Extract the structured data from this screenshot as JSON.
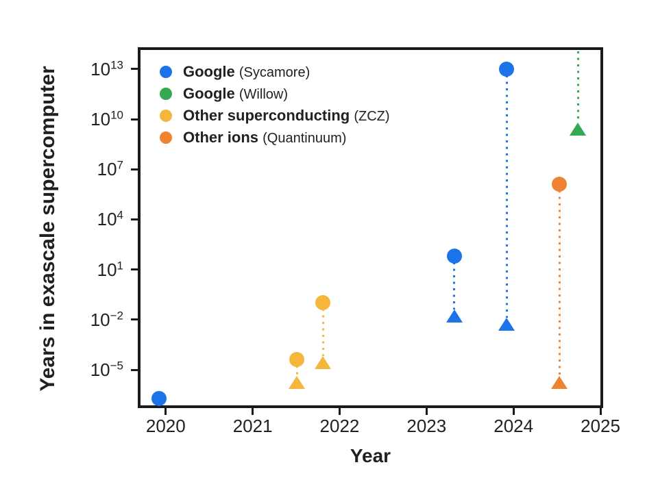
{
  "figure": {
    "background": "#ffffff",
    "axis_color": "#1a1a1a",
    "text_color": "#202124"
  },
  "chart_data": {
    "type": "scatter",
    "title": "",
    "xlabel": "Year",
    "ylabel": "Years in exascale supercomputer",
    "x_ticks": [
      2020,
      2021,
      2022,
      2023,
      2024,
      2025
    ],
    "y_ticks_log10": [
      13,
      10,
      7,
      4,
      1,
      -2,
      -5
    ],
    "y_tick_base": "10",
    "x_range": [
      2019.71,
      2025.0
    ],
    "y_log10_range": [
      -7.13,
      14.14
    ],
    "y_scale": "log",
    "grid": false,
    "legend_position": "upper-left-inside",
    "marker_shapes": [
      "circle",
      "triangle"
    ],
    "connector_style": "dotted-vertical",
    "series": [
      {
        "name": "Google",
        "detail": "(Sycamore)",
        "color": "#1A73E8",
        "points": [
          {
            "year": 2019.92,
            "circle_log10": -6.7,
            "circle_value": "~2e-7",
            "triangle_log10": null,
            "triangle_offscale": "below"
          },
          {
            "year": 2023.32,
            "circle_log10": 1.8,
            "circle_value": "~6e1",
            "triangle_log10": -1.85,
            "triangle_value": "~1.4e-2"
          },
          {
            "year": 2023.92,
            "circle_log10": 13.0,
            "circle_value": "~1e13",
            "triangle_log10": -2.35,
            "triangle_value": "~4.5e-3"
          }
        ]
      },
      {
        "name": "Google",
        "detail": "(Willow)",
        "color": "#34A853",
        "points": [
          {
            "year": 2024.74,
            "circle_log10": null,
            "circle_offscale": "above",
            "triangle_log10": 9.35,
            "triangle_value": "~2.2e9"
          }
        ]
      },
      {
        "name": "Other superconducting",
        "detail": "(ZCZ)",
        "color": "#F4B63C",
        "points": [
          {
            "year": 2021.51,
            "circle_log10": -4.4,
            "circle_value": "~4e-5",
            "triangle_log10": -5.8,
            "triangle_value": "~1.5e-6"
          },
          {
            "year": 2021.81,
            "circle_log10": -1.0,
            "circle_value": "~1e-1",
            "triangle_log10": -4.65,
            "triangle_value": "~2e-5"
          }
        ]
      },
      {
        "name": "Other ions",
        "detail": "(Quantinuum)",
        "color": "#EF8332",
        "points": [
          {
            "year": 2024.53,
            "circle_log10": 6.1,
            "circle_value": "~1.2e6",
            "triangle_log10": -5.8,
            "triangle_value": "~1.5e-6"
          }
        ]
      }
    ]
  }
}
